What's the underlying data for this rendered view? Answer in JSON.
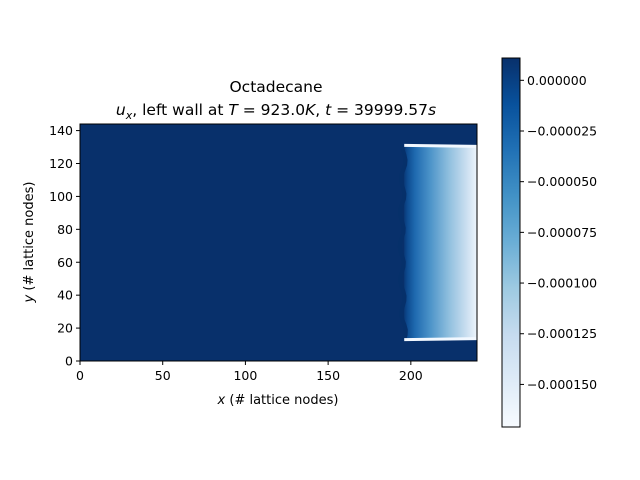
{
  "chart_data": {
    "type": "heatmap",
    "title_line1": "Octadecane",
    "title_line2_parts": {
      "var": "u",
      "var_sub": "x",
      "text1": ", left wall at ",
      "T_sym": "T",
      "T_eq": " = 923.0",
      "T_unit": "K",
      "sep": ", ",
      "t_sym": "t",
      "t_eq": " = 39999.57",
      "t_unit": "s"
    },
    "xlabel_sym": "x",
    "xlabel_rest": " (# lattice nodes)",
    "ylabel_sym": "y",
    "ylabel_rest": " (# lattice nodes)",
    "xlim": [
      0,
      240
    ],
    "ylim": [
      0,
      144
    ],
    "xticks": [
      {
        "v": 0,
        "label": "0"
      },
      {
        "v": 50,
        "label": "50"
      },
      {
        "v": 100,
        "label": "100"
      },
      {
        "v": 150,
        "label": "150"
      },
      {
        "v": 200,
        "label": "200"
      }
    ],
    "yticks": [
      {
        "v": 0,
        "label": "0"
      },
      {
        "v": 20,
        "label": "20"
      },
      {
        "v": 40,
        "label": "40"
      },
      {
        "v": 60,
        "label": "60"
      },
      {
        "v": 80,
        "label": "80"
      },
      {
        "v": 100,
        "label": "100"
      },
      {
        "v": 120,
        "label": "120"
      },
      {
        "v": 140,
        "label": "140"
      }
    ],
    "colormap": "Blues_r",
    "colorbar": {
      "vmin": -0.000171,
      "vmax": 1.1e-05,
      "ticks": [
        {
          "v": 0.0,
          "label": "0.000000"
        },
        {
          "v": -2.5e-05,
          "label": "−0.000025"
        },
        {
          "v": -5e-05,
          "label": "−0.000050"
        },
        {
          "v": -7.5e-05,
          "label": "−0.000075"
        },
        {
          "v": -0.0001,
          "label": "−0.000100"
        },
        {
          "v": -0.000125,
          "label": "−0.000125"
        },
        {
          "v": -0.00015,
          "label": "−0.000150"
        }
      ]
    },
    "field": {
      "background_value": 0.0,
      "region_x": [
        196,
        240
      ],
      "region_y": [
        13,
        131
      ],
      "interface_value": 8e-06,
      "right_wall_value": -0.000168
    }
  }
}
